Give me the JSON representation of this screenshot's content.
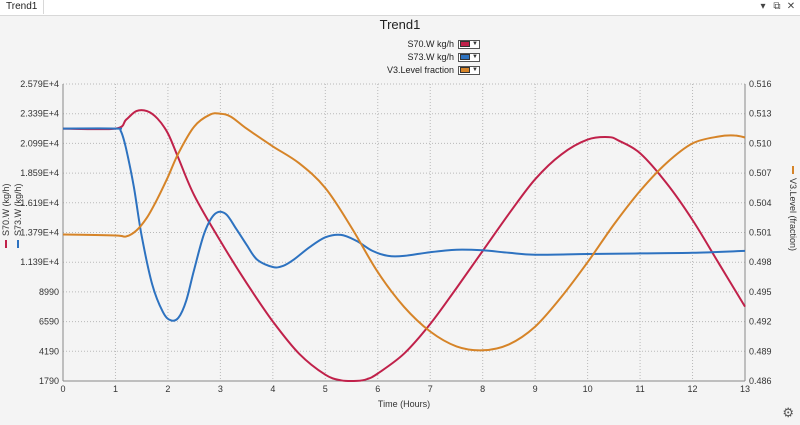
{
  "window": {
    "tab_title": "Trend1",
    "controls": {
      "pin": "▾",
      "restore": "⧉",
      "close": "✕"
    }
  },
  "settings_icon": "gear-icon",
  "chart_data": {
    "type": "line",
    "title": "Trend1",
    "xlabel": "Time (Hours)",
    "ylabel_left": "S70.W (kg/h)",
    "ylabel_left2": "S73.W (kg/h)",
    "ylabel_right": "V3.Level (fraction)",
    "xlim": [
      0,
      13
    ],
    "ylim_left": [
      1790,
      25790
    ],
    "ylim_right": [
      0.486,
      0.516
    ],
    "x_ticks": [
      "0",
      "1",
      "2",
      "3",
      "4",
      "5",
      "6",
      "7",
      "8",
      "9",
      "10",
      "11",
      "12",
      "13"
    ],
    "y_left_ticks": [
      "2.579E+4",
      "2.339E+4",
      "2.099E+4",
      "1.859E+4",
      "1.619E+4",
      "1.379E+4",
      "1.139E+4",
      "8990",
      "6590",
      "4190",
      "1790"
    ],
    "y_right_ticks": [
      "0.516",
      "0.513",
      "0.510",
      "0.507",
      "0.504",
      "0.501",
      "0.498",
      "0.495",
      "0.492",
      "0.489",
      "0.486"
    ],
    "grid": true,
    "legend_position": "top-center",
    "series": [
      {
        "name": "S70.W kg/h",
        "color": "#c0214a",
        "axis": "left",
        "x": [
          0,
          1,
          1.2,
          1.4,
          1.6,
          1.8,
          2.0,
          2.2,
          2.5,
          3.0,
          3.5,
          4.0,
          4.5,
          5.0,
          5.3,
          5.6,
          5.8,
          6.0,
          6.5,
          7.0,
          7.5,
          8.0,
          8.5,
          9.0,
          9.5,
          10.0,
          10.4,
          10.6,
          11.0,
          11.5,
          12.0,
          12.5,
          13.0
        ],
        "y": [
          22190,
          22190,
          22900,
          23600,
          23600,
          23000,
          21800,
          19800,
          16800,
          13100,
          9700,
          6600,
          4000,
          2300,
          1850,
          1800,
          1950,
          2400,
          4000,
          6400,
          9300,
          12300,
          15300,
          18100,
          20100,
          21300,
          21500,
          21200,
          20200,
          17800,
          14800,
          11300,
          7800
        ]
      },
      {
        "name": "S73.W kg/h",
        "color": "#2d72c0",
        "axis": "left",
        "x": [
          0,
          1,
          1.1,
          1.2,
          1.35,
          1.5,
          1.7,
          1.9,
          2.05,
          2.2,
          2.35,
          2.5,
          2.7,
          2.9,
          3.1,
          3.3,
          3.5,
          3.7,
          4.0,
          4.2,
          4.4,
          4.7,
          5.0,
          5.3,
          5.6,
          5.9,
          6.2,
          6.5,
          7.0,
          7.5,
          8.0,
          8.5,
          9.0,
          10.0,
          11.0,
          12.0,
          13.0
        ],
        "y": [
          22190,
          22190,
          22000,
          20600,
          17500,
          13500,
          9600,
          7400,
          6700,
          6900,
          8300,
          10800,
          13800,
          15300,
          15300,
          14100,
          12800,
          11600,
          11000,
          11100,
          11600,
          12600,
          13400,
          13600,
          13100,
          12300,
          11900,
          11900,
          12200,
          12400,
          12350,
          12150,
          12000,
          12050,
          12100,
          12150,
          12300
        ]
      },
      {
        "name": "V3.Level fraction",
        "color": "#d68428",
        "axis": "right",
        "x": [
          0,
          1,
          1.2,
          1.4,
          1.6,
          1.8,
          2.0,
          2.2,
          2.5,
          2.8,
          3.0,
          3.2,
          3.5,
          4.0,
          4.5,
          5.0,
          5.5,
          6.0,
          6.5,
          7.0,
          7.5,
          8.0,
          8.5,
          9.0,
          9.5,
          10.0,
          10.5,
          11.0,
          11.5,
          12.0,
          12.5,
          12.8,
          13.0
        ],
        "y": [
          0.5008,
          0.5007,
          0.5006,
          0.5012,
          0.5025,
          0.5044,
          0.5066,
          0.509,
          0.5117,
          0.5129,
          0.513,
          0.5127,
          0.5115,
          0.5097,
          0.508,
          0.5055,
          0.5015,
          0.497,
          0.4935,
          0.491,
          0.4895,
          0.4891,
          0.4897,
          0.4915,
          0.4945,
          0.498,
          0.5018,
          0.5052,
          0.508,
          0.51,
          0.5107,
          0.5108,
          0.5106
        ]
      }
    ]
  }
}
